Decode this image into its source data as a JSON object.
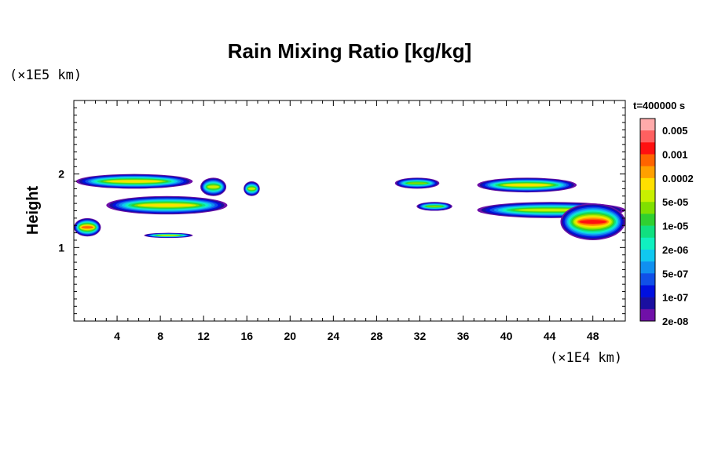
{
  "chart_data": {
    "type": "heatmap",
    "title": "Rain Mixing Ratio [kg/kg]",
    "xlabel": "",
    "ylabel": "Height",
    "x_multiplier": "(×1E4 km)",
    "y_multiplier": "(×1E5 km)",
    "time_label": "t=400000 s",
    "xlim": [
      0,
      51
    ],
    "ylim": [
      0,
      3
    ],
    "x_ticks": [
      4,
      8,
      12,
      16,
      20,
      24,
      28,
      32,
      36,
      40,
      44,
      48
    ],
    "x_tick_labels": [
      "4",
      "8",
      "12",
      "16",
      "20",
      "24",
      "28",
      "32",
      "36",
      "40",
      "44",
      "48"
    ],
    "y_ticks": [
      1,
      2
    ],
    "y_tick_labels": [
      "1",
      "2"
    ],
    "colorbar": {
      "labels": [
        "0.005",
        "0.001",
        "0.0002",
        "5e-05",
        "1e-05",
        "2e-06",
        "5e-07",
        "1e-07",
        "2e-08"
      ],
      "colors": [
        "#ffaaaa",
        "#ff6060",
        "#ff1010",
        "#ff6400",
        "#ffa000",
        "#ffe000",
        "#c8f000",
        "#80e000",
        "#30d030",
        "#10e080",
        "#10f0c0",
        "#10c8f0",
        "#1090f0",
        "#1050e8",
        "#0010e0",
        "#1a0fa0",
        "#7010a8"
      ]
    },
    "regions": [
      {
        "x": [
          0.2,
          11.0
        ],
        "y": [
          1.8,
          2.0
        ],
        "peak_level": 5
      },
      {
        "x": [
          11.7,
          14.1
        ],
        "y": [
          1.7,
          1.95
        ],
        "peak_level": 6
      },
      {
        "x": [
          15.7,
          17.2
        ],
        "y": [
          1.7,
          1.9
        ],
        "peak_level": 6
      },
      {
        "x": [
          3.0,
          14.2
        ],
        "y": [
          1.45,
          1.7
        ],
        "peak_level": 5
      },
      {
        "x": [
          0.0,
          2.5
        ],
        "y": [
          1.15,
          1.4
        ],
        "peak_level": 3
      },
      {
        "x": [
          6.5,
          11.0
        ],
        "y": [
          1.13,
          1.2
        ],
        "peak_level": 6
      },
      {
        "x": [
          29.7,
          33.8
        ],
        "y": [
          1.8,
          1.95
        ],
        "peak_level": 7
      },
      {
        "x": [
          31.7,
          35.0
        ],
        "y": [
          1.5,
          1.62
        ],
        "peak_level": 7
      },
      {
        "x": [
          37.3,
          46.5
        ],
        "y": [
          1.75,
          1.95
        ],
        "peak_level": 5
      },
      {
        "x": [
          37.3,
          51.0
        ],
        "y": [
          1.4,
          1.62
        ],
        "peak_level": 6
      },
      {
        "x": [
          45.0,
          51.0
        ],
        "y": [
          1.1,
          1.6
        ],
        "peak_level": 2
      }
    ]
  }
}
